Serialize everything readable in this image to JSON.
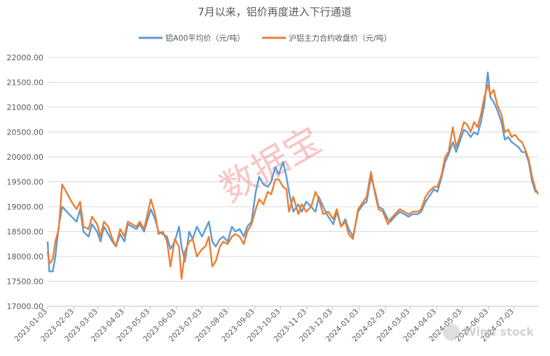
{
  "chart_data": {
    "type": "line",
    "title": "7月以来，铝价再度进入下行通道",
    "ylim": [
      17000,
      22000
    ],
    "y_ticks": [
      "17000.00",
      "17500.00",
      "18000.00",
      "18500.00",
      "19000.00",
      "19500.00",
      "20000.00",
      "20500.00",
      "21000.00",
      "21500.00",
      "22000.00"
    ],
    "x_ticks": [
      "2023-01-03",
      "2023-02-03",
      "2023-03-03",
      "2023-04-03",
      "2023-05-03",
      "2023-06-03",
      "2023-07-03",
      "2023-08-03",
      "2023-09-03",
      "2023-10-03",
      "2023-11-03",
      "2023-12-03",
      "2024-01-03",
      "2024-02-03",
      "2024-03-03",
      "2024-04-03",
      "2024-05-03",
      "2024-06-03",
      "2024-07-03"
    ],
    "xlim": [
      "2023-01-03",
      "2024-07-31"
    ],
    "grid": "horizontal",
    "legend_position": "top",
    "watermark": "数据宝",
    "corner_watermark": "Wind stock",
    "series": [
      {
        "name": "铝A00平均价（元/吨）",
        "color": "#5b9bd5",
        "points": [
          [
            "2023-01-03",
            18300
          ],
          [
            "2023-01-05",
            17700
          ],
          [
            "2023-01-09",
            17700
          ],
          [
            "2023-01-12",
            18000
          ],
          [
            "2023-01-16",
            18600
          ],
          [
            "2023-01-20",
            19000
          ],
          [
            "2023-01-31",
            18800
          ],
          [
            "2023-02-06",
            18700
          ],
          [
            "2023-02-10",
            18950
          ],
          [
            "2023-02-14",
            18500
          ],
          [
            "2023-02-20",
            18400
          ],
          [
            "2023-02-24",
            18650
          ],
          [
            "2023-03-02",
            18500
          ],
          [
            "2023-03-06",
            18300
          ],
          [
            "2023-03-10",
            18600
          ],
          [
            "2023-03-15",
            18450
          ],
          [
            "2023-03-20",
            18300
          ],
          [
            "2023-03-24",
            18200
          ],
          [
            "2023-03-29",
            18450
          ],
          [
            "2023-04-03",
            18300
          ],
          [
            "2023-04-07",
            18650
          ],
          [
            "2023-04-12",
            18600
          ],
          [
            "2023-04-17",
            18550
          ],
          [
            "2023-04-21",
            18650
          ],
          [
            "2023-04-26",
            18500
          ],
          [
            "2023-05-04",
            18950
          ],
          [
            "2023-05-09",
            18750
          ],
          [
            "2023-05-13",
            18500
          ],
          [
            "2023-05-18",
            18450
          ],
          [
            "2023-05-23",
            18400
          ],
          [
            "2023-05-27",
            18150
          ],
          [
            "2023-06-01",
            18300
          ],
          [
            "2023-06-06",
            18600
          ],
          [
            "2023-06-09",
            18200
          ],
          [
            "2023-06-13",
            17900
          ],
          [
            "2023-06-18",
            18500
          ],
          [
            "2023-06-22",
            18350
          ],
          [
            "2023-06-27",
            18600
          ],
          [
            "2023-07-03",
            18400
          ],
          [
            "2023-07-07",
            18550
          ],
          [
            "2023-07-11",
            18700
          ],
          [
            "2023-07-15",
            18300
          ],
          [
            "2023-07-19",
            18200
          ],
          [
            "2023-07-24",
            18350
          ],
          [
            "2023-07-28",
            18400
          ],
          [
            "2023-08-02",
            18300
          ],
          [
            "2023-08-07",
            18600
          ],
          [
            "2023-08-11",
            18500
          ],
          [
            "2023-08-16",
            18550
          ],
          [
            "2023-08-21",
            18400
          ],
          [
            "2023-08-25",
            18600
          ],
          [
            "2023-08-30",
            18700
          ],
          [
            "2023-09-04",
            19300
          ],
          [
            "2023-09-08",
            19600
          ],
          [
            "2023-09-13",
            19450
          ],
          [
            "2023-09-18",
            19400
          ],
          [
            "2023-09-22",
            19500
          ],
          [
            "2023-09-27",
            19800
          ],
          [
            "2023-10-01",
            19650
          ],
          [
            "2023-10-06",
            19900
          ],
          [
            "2023-10-10",
            19600
          ],
          [
            "2023-10-13",
            19300
          ],
          [
            "2023-10-18",
            18900
          ],
          [
            "2023-10-24",
            19050
          ],
          [
            "2023-10-28",
            18900
          ],
          [
            "2023-11-02",
            19100
          ],
          [
            "2023-11-08",
            19000
          ],
          [
            "2023-11-13",
            18900
          ],
          [
            "2023-11-17",
            19200
          ],
          [
            "2023-11-22",
            19000
          ],
          [
            "2023-11-28",
            18800
          ],
          [
            "2023-12-04",
            18650
          ],
          [
            "2023-12-08",
            18900
          ],
          [
            "2023-12-13",
            18600
          ],
          [
            "2023-12-18",
            18750
          ],
          [
            "2023-12-22",
            18550
          ],
          [
            "2023-12-27",
            18400
          ],
          [
            "2024-01-02",
            18900
          ],
          [
            "2024-01-08",
            19050
          ],
          [
            "2024-01-12",
            19100
          ],
          [
            "2024-01-17",
            19600
          ],
          [
            "2024-01-22",
            19300
          ],
          [
            "2024-01-26",
            19000
          ],
          [
            "2024-01-31",
            18950
          ],
          [
            "2024-02-06",
            18750
          ],
          [
            "2024-02-09",
            18700
          ],
          [
            "2024-02-14",
            18800
          ],
          [
            "2024-02-20",
            18900
          ],
          [
            "2024-02-25",
            18850
          ],
          [
            "2024-03-01",
            18800
          ],
          [
            "2024-03-06",
            18850
          ],
          [
            "2024-03-12",
            18850
          ],
          [
            "2024-03-16",
            18900
          ],
          [
            "2024-03-21",
            19100
          ],
          [
            "2024-03-25",
            19200
          ],
          [
            "2024-03-31",
            19350
          ],
          [
            "2024-04-04",
            19300
          ],
          [
            "2024-04-09",
            19600
          ],
          [
            "2024-04-13",
            19900
          ],
          [
            "2024-04-17",
            20050
          ],
          [
            "2024-04-22",
            20300
          ],
          [
            "2024-04-26",
            20100
          ],
          [
            "2024-04-30",
            20300
          ],
          [
            "2024-05-05",
            20550
          ],
          [
            "2024-05-09",
            20500
          ],
          [
            "2024-05-13",
            20400
          ],
          [
            "2024-05-17",
            20500
          ],
          [
            "2024-05-21",
            20450
          ],
          [
            "2024-05-25",
            20700
          ],
          [
            "2024-05-29",
            21050
          ],
          [
            "2024-06-02",
            21700
          ],
          [
            "2024-06-05",
            21200
          ],
          [
            "2024-06-09",
            21100
          ],
          [
            "2024-06-13",
            20950
          ],
          [
            "2024-06-18",
            20700
          ],
          [
            "2024-06-22",
            20350
          ],
          [
            "2024-06-26",
            20400
          ],
          [
            "2024-06-30",
            20300
          ],
          [
            "2024-07-04",
            20250
          ],
          [
            "2024-07-08",
            20200
          ],
          [
            "2024-07-12",
            20100
          ],
          [
            "2024-07-16",
            20100
          ],
          [
            "2024-07-20",
            19900
          ],
          [
            "2024-07-24",
            19500
          ],
          [
            "2024-07-28",
            19300
          ],
          [
            "2024-07-31",
            19300
          ]
        ]
      },
      {
        "name": "沪铝主力合约收盘价（元/吨）",
        "color": "#ed7d31",
        "points": [
          [
            "2023-01-03",
            18100
          ],
          [
            "2023-01-05",
            17850
          ],
          [
            "2023-01-09",
            17950
          ],
          [
            "2023-01-12",
            18300
          ],
          [
            "2023-01-16",
            18550
          ],
          [
            "2023-01-20",
            19450
          ],
          [
            "2023-01-31",
            19100
          ],
          [
            "2023-02-06",
            18950
          ],
          [
            "2023-02-10",
            19100
          ],
          [
            "2023-02-14",
            18600
          ],
          [
            "2023-02-20",
            18550
          ],
          [
            "2023-02-24",
            18800
          ],
          [
            "2023-03-02",
            18650
          ],
          [
            "2023-03-06",
            18400
          ],
          [
            "2023-03-10",
            18700
          ],
          [
            "2023-03-15",
            18600
          ],
          [
            "2023-03-20",
            18350
          ],
          [
            "2023-03-24",
            18200
          ],
          [
            "2023-03-29",
            18550
          ],
          [
            "2023-04-03",
            18400
          ],
          [
            "2023-04-07",
            18700
          ],
          [
            "2023-04-12",
            18650
          ],
          [
            "2023-04-17",
            18600
          ],
          [
            "2023-04-21",
            18700
          ],
          [
            "2023-04-26",
            18550
          ],
          [
            "2023-05-04",
            19150
          ],
          [
            "2023-05-09",
            18850
          ],
          [
            "2023-05-13",
            18450
          ],
          [
            "2023-05-18",
            18500
          ],
          [
            "2023-05-23",
            18300
          ],
          [
            "2023-05-27",
            17800
          ],
          [
            "2023-06-01",
            18350
          ],
          [
            "2023-06-06",
            18200
          ],
          [
            "2023-06-09",
            17550
          ],
          [
            "2023-06-13",
            18100
          ],
          [
            "2023-06-18",
            18300
          ],
          [
            "2023-06-22",
            18350
          ],
          [
            "2023-06-27",
            18000
          ],
          [
            "2023-07-03",
            18150
          ],
          [
            "2023-07-07",
            18200
          ],
          [
            "2023-07-11",
            18400
          ],
          [
            "2023-07-15",
            17800
          ],
          [
            "2023-07-19",
            17900
          ],
          [
            "2023-07-24",
            18200
          ],
          [
            "2023-07-28",
            18300
          ],
          [
            "2023-08-02",
            18250
          ],
          [
            "2023-08-07",
            18400
          ],
          [
            "2023-08-11",
            18450
          ],
          [
            "2023-08-16",
            18400
          ],
          [
            "2023-08-21",
            18250
          ],
          [
            "2023-08-25",
            18500
          ],
          [
            "2023-08-30",
            18650
          ],
          [
            "2023-09-04",
            18950
          ],
          [
            "2023-09-08",
            19150
          ],
          [
            "2023-09-13",
            19050
          ],
          [
            "2023-09-18",
            19300
          ],
          [
            "2023-09-22",
            19250
          ],
          [
            "2023-09-27",
            19550
          ],
          [
            "2023-10-01",
            19550
          ],
          [
            "2023-10-06",
            19400
          ],
          [
            "2023-10-10",
            19350
          ],
          [
            "2023-10-13",
            18900
          ],
          [
            "2023-10-18",
            19200
          ],
          [
            "2023-10-24",
            18850
          ],
          [
            "2023-10-28",
            19050
          ],
          [
            "2023-11-02",
            18900
          ],
          [
            "2023-11-08",
            19000
          ],
          [
            "2023-11-13",
            19300
          ],
          [
            "2023-11-17",
            19150
          ],
          [
            "2023-11-22",
            18850
          ],
          [
            "2023-11-28",
            18900
          ],
          [
            "2023-12-04",
            18750
          ],
          [
            "2023-12-08",
            18950
          ],
          [
            "2023-12-13",
            18600
          ],
          [
            "2023-12-18",
            18700
          ],
          [
            "2023-12-22",
            18450
          ],
          [
            "2023-12-27",
            18350
          ],
          [
            "2024-01-02",
            18950
          ],
          [
            "2024-01-08",
            19100
          ],
          [
            "2024-01-12",
            19200
          ],
          [
            "2024-01-17",
            19700
          ],
          [
            "2024-01-22",
            19250
          ],
          [
            "2024-01-26",
            18950
          ],
          [
            "2024-01-31",
            18900
          ],
          [
            "2024-02-06",
            18650
          ],
          [
            "2024-02-09",
            18750
          ],
          [
            "2024-02-14",
            18850
          ],
          [
            "2024-02-20",
            18950
          ],
          [
            "2024-02-25",
            18900
          ],
          [
            "2024-03-01",
            18850
          ],
          [
            "2024-03-06",
            18900
          ],
          [
            "2024-03-12",
            18900
          ],
          [
            "2024-03-16",
            18950
          ],
          [
            "2024-03-21",
            19200
          ],
          [
            "2024-03-25",
            19300
          ],
          [
            "2024-03-31",
            19400
          ],
          [
            "2024-04-04",
            19400
          ],
          [
            "2024-04-09",
            19650
          ],
          [
            "2024-04-13",
            20000
          ],
          [
            "2024-04-17",
            20100
          ],
          [
            "2024-04-22",
            20600
          ],
          [
            "2024-04-26",
            20200
          ],
          [
            "2024-04-30",
            20400
          ],
          [
            "2024-05-05",
            20700
          ],
          [
            "2024-05-09",
            20650
          ],
          [
            "2024-05-13",
            20500
          ],
          [
            "2024-05-17",
            20700
          ],
          [
            "2024-05-21",
            20600
          ],
          [
            "2024-05-25",
            20850
          ],
          [
            "2024-05-29",
            21200
          ],
          [
            "2024-06-02",
            21450
          ],
          [
            "2024-06-05",
            21250
          ],
          [
            "2024-06-09",
            21350
          ],
          [
            "2024-06-13",
            21050
          ],
          [
            "2024-06-18",
            20850
          ],
          [
            "2024-06-22",
            20500
          ],
          [
            "2024-06-26",
            20550
          ],
          [
            "2024-06-30",
            20400
          ],
          [
            "2024-07-04",
            20450
          ],
          [
            "2024-07-08",
            20350
          ],
          [
            "2024-07-12",
            20300
          ],
          [
            "2024-07-16",
            20150
          ],
          [
            "2024-07-20",
            19950
          ],
          [
            "2024-07-24",
            19600
          ],
          [
            "2024-07-28",
            19350
          ],
          [
            "2024-07-31",
            19250
          ]
        ]
      }
    ]
  }
}
